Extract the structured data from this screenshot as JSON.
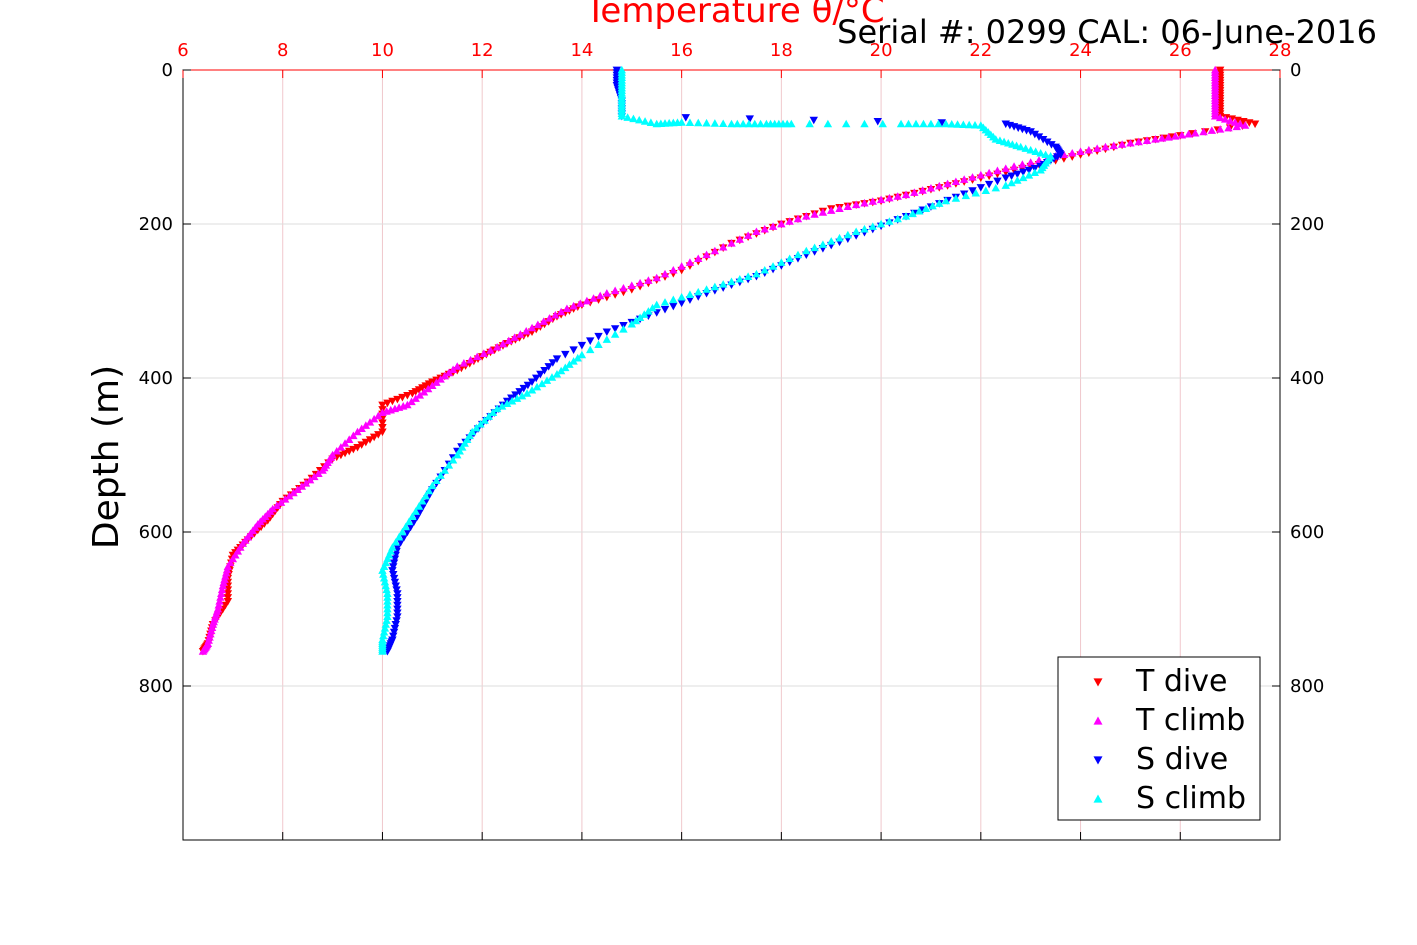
{
  "chart_data": {
    "type": "scatter",
    "title": "Serial #: 0299 CAL: 06-June-2016",
    "xlabel": "Temperature θ/°C",
    "ylabel": "Depth (m)",
    "xlim": [
      6,
      28
    ],
    "ylim": [
      1000,
      0
    ],
    "x_ticks": [
      "6",
      "8",
      "10",
      "12",
      "14",
      "16",
      "18",
      "20",
      "22",
      "24",
      "26",
      "28"
    ],
    "y_ticks": [
      "0",
      "200",
      "400",
      "600",
      "800"
    ],
    "grid": true,
    "legend_position": "bottom-right",
    "series": [
      {
        "name": "T dive",
        "color": "#ff0000",
        "marker": "triangle-down",
        "points": [
          [
            26.8,
            0
          ],
          [
            26.8,
            20
          ],
          [
            26.8,
            40
          ],
          [
            26.8,
            60
          ],
          [
            27.5,
            70
          ],
          [
            26.0,
            85
          ],
          [
            25.0,
            95
          ],
          [
            24.0,
            110
          ],
          [
            23.0,
            125
          ],
          [
            22.0,
            140
          ],
          [
            21.0,
            155
          ],
          [
            20.0,
            170
          ],
          [
            19.0,
            180
          ],
          [
            18.0,
            200
          ],
          [
            17.0,
            225
          ],
          [
            16.0,
            260
          ],
          [
            15.0,
            285
          ],
          [
            14.0,
            305
          ],
          [
            13.5,
            320
          ],
          [
            13.0,
            340
          ],
          [
            12.5,
            355
          ],
          [
            12.0,
            372
          ],
          [
            11.5,
            390
          ],
          [
            11.0,
            405
          ],
          [
            10.6,
            420
          ],
          [
            10.0,
            435
          ],
          [
            10.0,
            470
          ],
          [
            9.5,
            490
          ],
          [
            9.0,
            505
          ],
          [
            8.5,
            535
          ],
          [
            8.0,
            560
          ],
          [
            7.7,
            585
          ],
          [
            7.3,
            610
          ],
          [
            7.0,
            630
          ],
          [
            6.9,
            660
          ],
          [
            6.9,
            690
          ],
          [
            6.6,
            720
          ],
          [
            6.5,
            745
          ],
          [
            6.4,
            755
          ]
        ]
      },
      {
        "name": "T climb",
        "color": "#ff00ff",
        "marker": "triangle-up",
        "points": [
          [
            26.7,
            0
          ],
          [
            26.7,
            20
          ],
          [
            26.7,
            40
          ],
          [
            26.7,
            60
          ],
          [
            27.3,
            72
          ],
          [
            26.3,
            82
          ],
          [
            25.5,
            90
          ],
          [
            24.5,
            100
          ],
          [
            23.5,
            112
          ],
          [
            22.5,
            128
          ],
          [
            21.5,
            145
          ],
          [
            20.5,
            162
          ],
          [
            19.5,
            175
          ],
          [
            18.5,
            190
          ],
          [
            17.5,
            210
          ],
          [
            16.5,
            240
          ],
          [
            15.5,
            270
          ],
          [
            14.5,
            290
          ],
          [
            13.7,
            310
          ],
          [
            13.0,
            335
          ],
          [
            12.3,
            360
          ],
          [
            11.5,
            385
          ],
          [
            11.0,
            410
          ],
          [
            10.5,
            435
          ],
          [
            10.0,
            445
          ],
          [
            9.5,
            470
          ],
          [
            9.0,
            500
          ],
          [
            8.8,
            520
          ],
          [
            8.3,
            545
          ],
          [
            7.8,
            570
          ],
          [
            7.5,
            590
          ],
          [
            7.2,
            615
          ],
          [
            6.9,
            645
          ],
          [
            6.8,
            670
          ],
          [
            6.7,
            700
          ],
          [
            6.6,
            720
          ],
          [
            6.5,
            745
          ],
          [
            6.4,
            755
          ]
        ]
      },
      {
        "name": "S dive",
        "color": "#0000ff",
        "marker": "triangle-down",
        "points": [
          [
            14.7,
            0
          ],
          [
            14.7,
            20
          ],
          [
            14.8,
            40
          ],
          [
            14.8,
            60
          ],
          [
            22.5,
            70
          ],
          [
            23.0,
            80
          ],
          [
            23.5,
            100
          ],
          [
            23.6,
            110
          ],
          [
            23.2,
            125
          ],
          [
            22.5,
            140
          ],
          [
            21.5,
            165
          ],
          [
            20.5,
            190
          ],
          [
            19.5,
            215
          ],
          [
            18.5,
            240
          ],
          [
            17.5,
            268
          ],
          [
            16.5,
            290
          ],
          [
            15.5,
            315
          ],
          [
            14.5,
            340
          ],
          [
            13.5,
            375
          ],
          [
            13.0,
            405
          ],
          [
            12.5,
            430
          ],
          [
            12.0,
            460
          ],
          [
            11.5,
            495
          ],
          [
            11.0,
            545
          ],
          [
            10.7,
            580
          ],
          [
            10.3,
            620
          ],
          [
            10.2,
            650
          ],
          [
            10.3,
            680
          ],
          [
            10.3,
            710
          ],
          [
            10.2,
            740
          ],
          [
            10.1,
            755
          ]
        ]
      },
      {
        "name": "S climb",
        "color": "#00ffff",
        "marker": "triangle-up",
        "points": [
          [
            14.8,
            0
          ],
          [
            14.8,
            20
          ],
          [
            14.8,
            40
          ],
          [
            14.8,
            60
          ],
          [
            15.5,
            70
          ],
          [
            16.0,
            68
          ],
          [
            17.0,
            70
          ],
          [
            17.7,
            70
          ],
          [
            18.2,
            70
          ],
          [
            20.4,
            70
          ],
          [
            21.3,
            70
          ],
          [
            22.0,
            72
          ],
          [
            22.3,
            90
          ],
          [
            22.8,
            100
          ],
          [
            23.4,
            112
          ],
          [
            23.2,
            130
          ],
          [
            22.5,
            150
          ],
          [
            21.3,
            170
          ],
          [
            20.5,
            190
          ],
          [
            19.5,
            210
          ],
          [
            18.5,
            235
          ],
          [
            17.5,
            265
          ],
          [
            16.5,
            285
          ],
          [
            15.5,
            305
          ],
          [
            15.0,
            330
          ],
          [
            14.0,
            370
          ],
          [
            13.5,
            395
          ],
          [
            12.9,
            420
          ],
          [
            12.3,
            440
          ],
          [
            11.8,
            470
          ],
          [
            11.5,
            500
          ],
          [
            11.0,
            540
          ],
          [
            10.6,
            580
          ],
          [
            10.2,
            620
          ],
          [
            10.0,
            650
          ],
          [
            10.1,
            680
          ],
          [
            10.1,
            710
          ],
          [
            10.0,
            740
          ],
          [
            10.0,
            755
          ]
        ]
      }
    ]
  }
}
